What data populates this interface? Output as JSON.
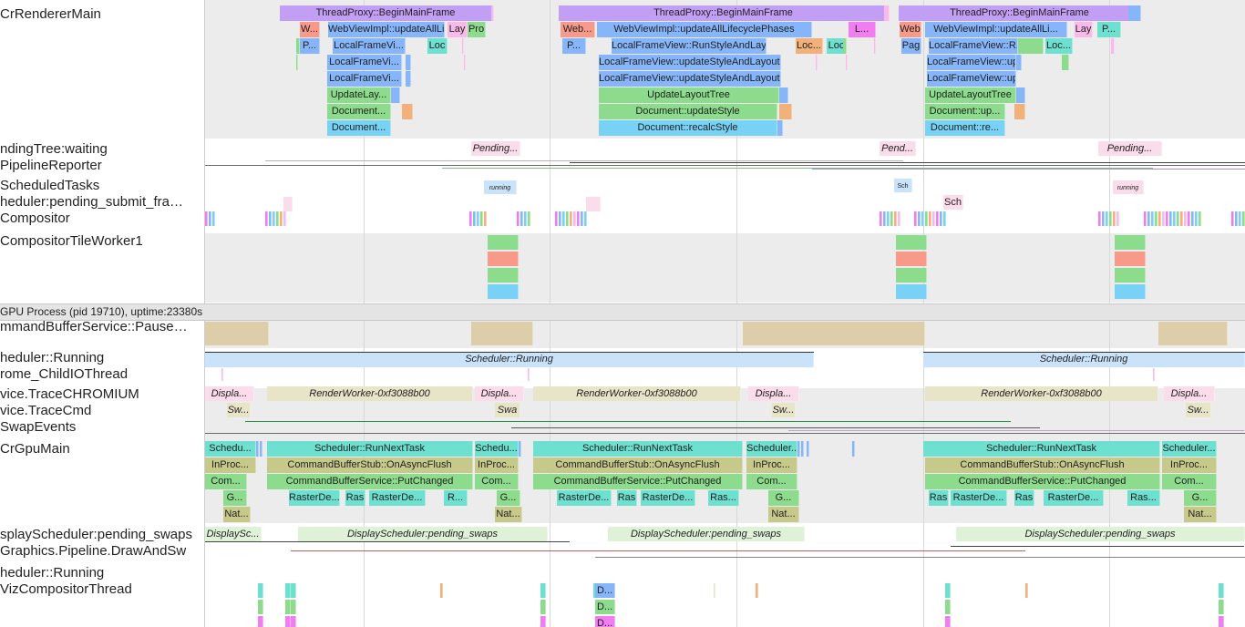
{
  "colors": {
    "purple": "#c39ef5",
    "blue": "#86b6f9",
    "cyan": "#78d2f5",
    "green": "#8ddb8d",
    "teal": "#6ee0cf",
    "olive": "#c7c98a",
    "tan": "#ddcda8",
    "pink": "#f9b9e9",
    "magenta": "#f07ef0",
    "salmon": "#f79a8a",
    "orange": "#f2b07a",
    "lightblue": "#c9e3fa",
    "lightgreen": "#dff2d8",
    "lightpink": "#fadcea",
    "khaki": "#e8e4c8"
  },
  "sidebar": {
    "tracks": [
      {
        "label": "CrRendererMain"
      },
      {
        "label": "ndingTree:waiting"
      },
      {
        "label": "PipelineReporter"
      },
      {
        "label": "ScheduledTasks"
      },
      {
        "label": "heduler:pending_submit_fra…"
      },
      {
        "label": "Compositor"
      },
      {
        "label": "CompositorTileWorker1"
      },
      {
        "label": "mmandBufferService::Pause…"
      },
      {
        "label": "heduler::Running"
      },
      {
        "label": "rome_ChildIOThread"
      },
      {
        "label": "vice.TraceCHROMIUM"
      },
      {
        "label": "vice.TraceCmd"
      },
      {
        "label": "SwapEvents"
      },
      {
        "label": "CrGpuMain"
      },
      {
        "label": "splayScheduler:pending_swaps"
      },
      {
        "label": "Graphics.Pipeline.DrawAndSw"
      },
      {
        "label": "heduler::Running"
      },
      {
        "label": "VizCompositorThread"
      }
    ]
  },
  "gpu_process_header": "GPU Process (pid 19710), uptime:23380s",
  "renderer_slices": [
    {
      "text": "ThreadProxy::BeginMainFrame"
    },
    {
      "text": "ThreadProxy::BeginMainFrame"
    },
    {
      "text": "ThreadProxy::BeginMainFrame"
    },
    {
      "text": "W..."
    },
    {
      "text": "WebViewImpl::updateAllLi..."
    },
    {
      "text": "Lay"
    },
    {
      "text": "Pro"
    },
    {
      "text": "Web..."
    },
    {
      "text": "WebViewImpl::updateAllLifecyclePhases"
    },
    {
      "text": "L..."
    },
    {
      "text": "Web"
    },
    {
      "text": "WebViewImpl::updateAllLi..."
    },
    {
      "text": "Lay"
    },
    {
      "text": "P..."
    },
    {
      "text": "P..."
    },
    {
      "text": "LocalFrameVi..."
    },
    {
      "text": "Loc"
    },
    {
      "text": "P..."
    },
    {
      "text": "LocalFrameView::RunStyleAndLayout..."
    },
    {
      "text": "Loc..."
    },
    {
      "text": "Loc"
    },
    {
      "text": "Pag"
    },
    {
      "text": "LocalFrameView::R..."
    },
    {
      "text": "Loc..."
    },
    {
      "text": "LocalFrameVi..."
    },
    {
      "text": "LocalFrameView::updateStyleAndLayout..."
    },
    {
      "text": "LocalFrameView::up..."
    },
    {
      "text": "LocalFrameVi..."
    },
    {
      "text": "LocalFrameView::updateStyleAndLayout..."
    },
    {
      "text": "LocalFrameView::up..."
    },
    {
      "text": "UpdateLay..."
    },
    {
      "text": "UpdateLayoutTree"
    },
    {
      "text": "UpdateLayoutTree"
    },
    {
      "text": "Document..."
    },
    {
      "text": "Document::updateStyle"
    },
    {
      "text": "Document::up..."
    },
    {
      "text": "Document..."
    },
    {
      "text": "Document::recalcStyle"
    },
    {
      "text": "Document::re..."
    }
  ],
  "pending_slices": [
    {
      "text": "Pending..."
    },
    {
      "text": "Pend..."
    },
    {
      "text": "Pending..."
    }
  ],
  "scheduled_slices": [
    {
      "text": "running"
    },
    {
      "text": "Sch"
    },
    {
      "text": "running"
    }
  ],
  "submit_slices": [
    {
      "text": "Sch"
    }
  ],
  "gpu_scheduler_running": [
    {
      "text": "Scheduler::Running"
    },
    {
      "text": "Scheduler::Running"
    }
  ],
  "trace_chromium_slices": [
    {
      "text": "Displa..."
    },
    {
      "text": "RenderWorker-0xf3088b00"
    },
    {
      "text": "Displa..."
    },
    {
      "text": "RenderWorker-0xf3088b00"
    },
    {
      "text": "Displa..."
    },
    {
      "text": "RenderWorker-0xf3088b00"
    },
    {
      "text": "Displa..."
    }
  ],
  "trace_cmd_slices": [
    {
      "text": "Sw..."
    },
    {
      "text": "Swa"
    },
    {
      "text": "Sw..."
    },
    {
      "text": "Sw..."
    }
  ],
  "gpumain_slices": [
    {
      "text": "Schedu..."
    },
    {
      "text": "Scheduler::RunNextTask"
    },
    {
      "text": "Schedu..."
    },
    {
      "text": "Scheduler::RunNextTask"
    },
    {
      "text": "Scheduler..."
    },
    {
      "text": "Scheduler::RunNextTask"
    },
    {
      "text": "Scheduler..."
    },
    {
      "text": "InProc..."
    },
    {
      "text": "CommandBufferStub::OnAsyncFlush"
    },
    {
      "text": "InProc..."
    },
    {
      "text": "CommandBufferStub::OnAsyncFlush"
    },
    {
      "text": "InProc..."
    },
    {
      "text": "CommandBufferStub::OnAsyncFlush"
    },
    {
      "text": "InProc..."
    },
    {
      "text": "Com..."
    },
    {
      "text": "CommandBufferService::PutChanged"
    },
    {
      "text": "Com..."
    },
    {
      "text": "CommandBufferService::PutChanged"
    },
    {
      "text": "Com..."
    },
    {
      "text": "CommandBufferService::PutChanged"
    },
    {
      "text": "Com..."
    },
    {
      "text": "G..."
    },
    {
      "text": "RasterDe..."
    },
    {
      "text": "Ras"
    },
    {
      "text": "RasterDe..."
    },
    {
      "text": "R..."
    },
    {
      "text": "G..."
    },
    {
      "text": "RasterDe..."
    },
    {
      "text": "Ras"
    },
    {
      "text": "RasterDe..."
    },
    {
      "text": "Ras..."
    },
    {
      "text": "G..."
    },
    {
      "text": "Ras"
    },
    {
      "text": "RasterDe..."
    },
    {
      "text": "Ras"
    },
    {
      "text": "RasterDe..."
    },
    {
      "text": "Ras..."
    },
    {
      "text": "G..."
    },
    {
      "text": "Nat..."
    },
    {
      "text": "Nat..."
    },
    {
      "text": "Nat..."
    },
    {
      "text": "Nat..."
    }
  ],
  "pending_swaps_slices": [
    {
      "text": "DisplaySc..."
    },
    {
      "text": "DisplayScheduler:pending_swaps"
    },
    {
      "text": "DisplayScheduler:pending_swaps"
    },
    {
      "text": "DisplayScheduler:pending_swaps"
    }
  ],
  "viz_slices": [
    {
      "text": "D..."
    },
    {
      "text": "D..."
    },
    {
      "text": "D..."
    }
  ]
}
